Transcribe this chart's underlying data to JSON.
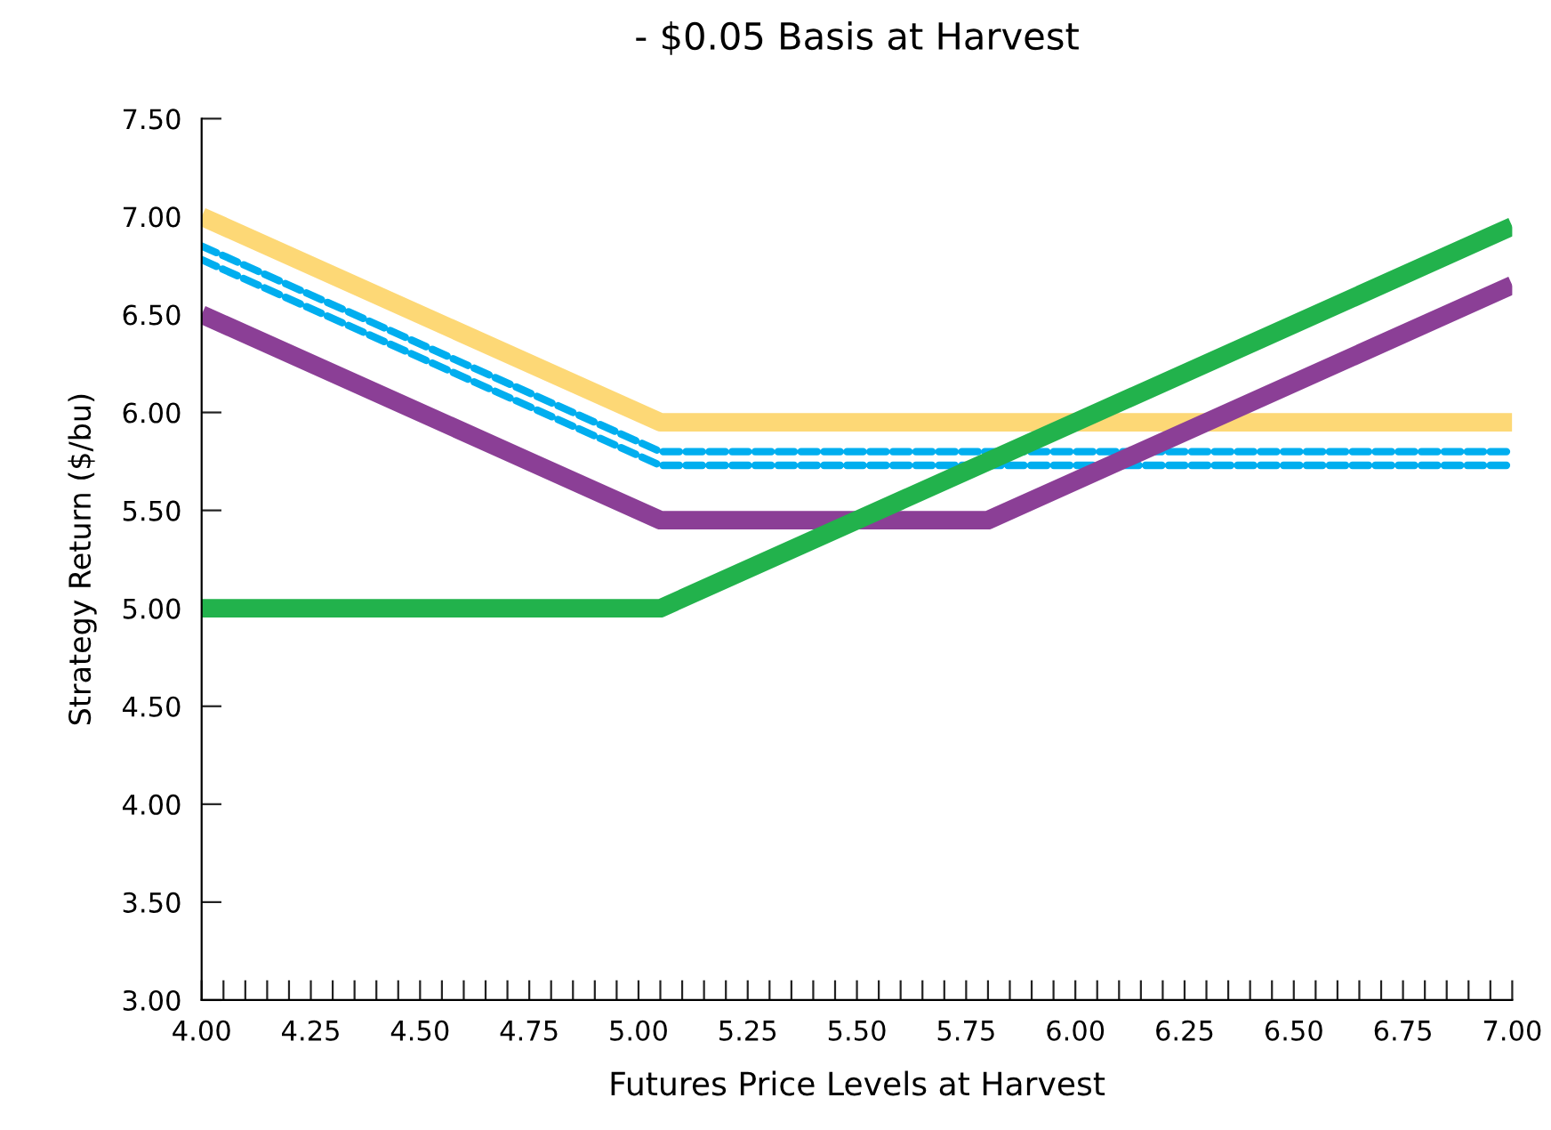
{
  "chart_data": {
    "type": "line",
    "title": "- $0.05 Basis at Harvest",
    "xlabel": "Futures Price Levels at Harvest",
    "ylabel": "Strategy Return ($/bu)",
    "xlim": [
      4.0,
      7.0
    ],
    "ylim": [
      3.0,
      7.5
    ],
    "xticks": [
      {
        "value": 4.0,
        "label": "4.00"
      },
      {
        "value": 4.05,
        "label": null
      },
      {
        "value": 4.1,
        "label": null
      },
      {
        "value": 4.15,
        "label": null
      },
      {
        "value": 4.2,
        "label": null
      },
      {
        "value": 4.25,
        "label": "4.25"
      },
      {
        "value": 4.3,
        "label": null
      },
      {
        "value": 4.35,
        "label": null
      },
      {
        "value": 4.4,
        "label": null
      },
      {
        "value": 4.45,
        "label": null
      },
      {
        "value": 4.5,
        "label": "4.50"
      },
      {
        "value": 4.55,
        "label": null
      },
      {
        "value": 4.6,
        "label": null
      },
      {
        "value": 4.65,
        "label": null
      },
      {
        "value": 4.7,
        "label": null
      },
      {
        "value": 4.75,
        "label": "4.75"
      },
      {
        "value": 4.8,
        "label": null
      },
      {
        "value": 4.85,
        "label": null
      },
      {
        "value": 4.9,
        "label": null
      },
      {
        "value": 4.95,
        "label": null
      },
      {
        "value": 5.0,
        "label": "5.00"
      },
      {
        "value": 5.05,
        "label": null
      },
      {
        "value": 5.1,
        "label": null
      },
      {
        "value": 5.15,
        "label": null
      },
      {
        "value": 5.2,
        "label": null
      },
      {
        "value": 5.25,
        "label": "5.25"
      },
      {
        "value": 5.3,
        "label": null
      },
      {
        "value": 5.35,
        "label": null
      },
      {
        "value": 5.4,
        "label": null
      },
      {
        "value": 5.45,
        "label": null
      },
      {
        "value": 5.5,
        "label": "5.50"
      },
      {
        "value": 5.55,
        "label": null
      },
      {
        "value": 5.6,
        "label": null
      },
      {
        "value": 5.65,
        "label": null
      },
      {
        "value": 5.7,
        "label": null
      },
      {
        "value": 5.75,
        "label": "5.75"
      },
      {
        "value": 5.8,
        "label": null
      },
      {
        "value": 5.85,
        "label": null
      },
      {
        "value": 5.9,
        "label": null
      },
      {
        "value": 5.95,
        "label": null
      },
      {
        "value": 6.0,
        "label": "6.00"
      },
      {
        "value": 6.05,
        "label": null
      },
      {
        "value": 6.1,
        "label": null
      },
      {
        "value": 6.15,
        "label": null
      },
      {
        "value": 6.2,
        "label": null
      },
      {
        "value": 6.25,
        "label": "6.25"
      },
      {
        "value": 6.3,
        "label": null
      },
      {
        "value": 6.35,
        "label": null
      },
      {
        "value": 6.4,
        "label": null
      },
      {
        "value": 6.45,
        "label": null
      },
      {
        "value": 6.5,
        "label": "6.50"
      },
      {
        "value": 6.55,
        "label": null
      },
      {
        "value": 6.6,
        "label": null
      },
      {
        "value": 6.65,
        "label": null
      },
      {
        "value": 6.7,
        "label": null
      },
      {
        "value": 6.75,
        "label": "6.75"
      },
      {
        "value": 6.8,
        "label": null
      },
      {
        "value": 6.85,
        "label": null
      },
      {
        "value": 6.9,
        "label": null
      },
      {
        "value": 6.95,
        "label": null
      },
      {
        "value": 7.0,
        "label": "7.00"
      }
    ],
    "yticks": [
      {
        "value": 3.0,
        "label": "3.00"
      },
      {
        "value": 3.5,
        "label": "3.50"
      },
      {
        "value": 4.0,
        "label": "4.00"
      },
      {
        "value": 4.5,
        "label": "4.50"
      },
      {
        "value": 5.0,
        "label": "5.00"
      },
      {
        "value": 5.5,
        "label": "5.50"
      },
      {
        "value": 6.0,
        "label": "6.00"
      },
      {
        "value": 6.5,
        "label": "6.50"
      },
      {
        "value": 7.0,
        "label": "7.00"
      },
      {
        "value": 7.5,
        "label": "7.50"
      }
    ],
    "series": [
      {
        "color": "#fdd876",
        "line_style": "solid",
        "x": [
          4.0,
          5.05,
          7.0
        ],
        "values": [
          7.0,
          5.95,
          5.95
        ]
      },
      {
        "color": "#00aeef",
        "line_style": "dashed",
        "x": [
          4.0,
          5.05,
          7.0
        ],
        "values": [
          6.85,
          5.8,
          5.8
        ]
      },
      {
        "color": "#00aeef",
        "line_style": "dashed",
        "x": [
          4.0,
          5.05,
          7.0
        ],
        "values": [
          6.78,
          5.73,
          5.73
        ]
      },
      {
        "color": "#8b3f96",
        "line_style": "solid",
        "x": [
          4.0,
          5.05,
          5.8,
          7.0
        ],
        "values": [
          6.5,
          5.45,
          5.45,
          6.65
        ]
      },
      {
        "color": "#22b24c",
        "line_style": "solid",
        "x": [
          4.0,
          5.05,
          7.0
        ],
        "values": [
          5.0,
          5.0,
          6.95
        ]
      }
    ]
  }
}
